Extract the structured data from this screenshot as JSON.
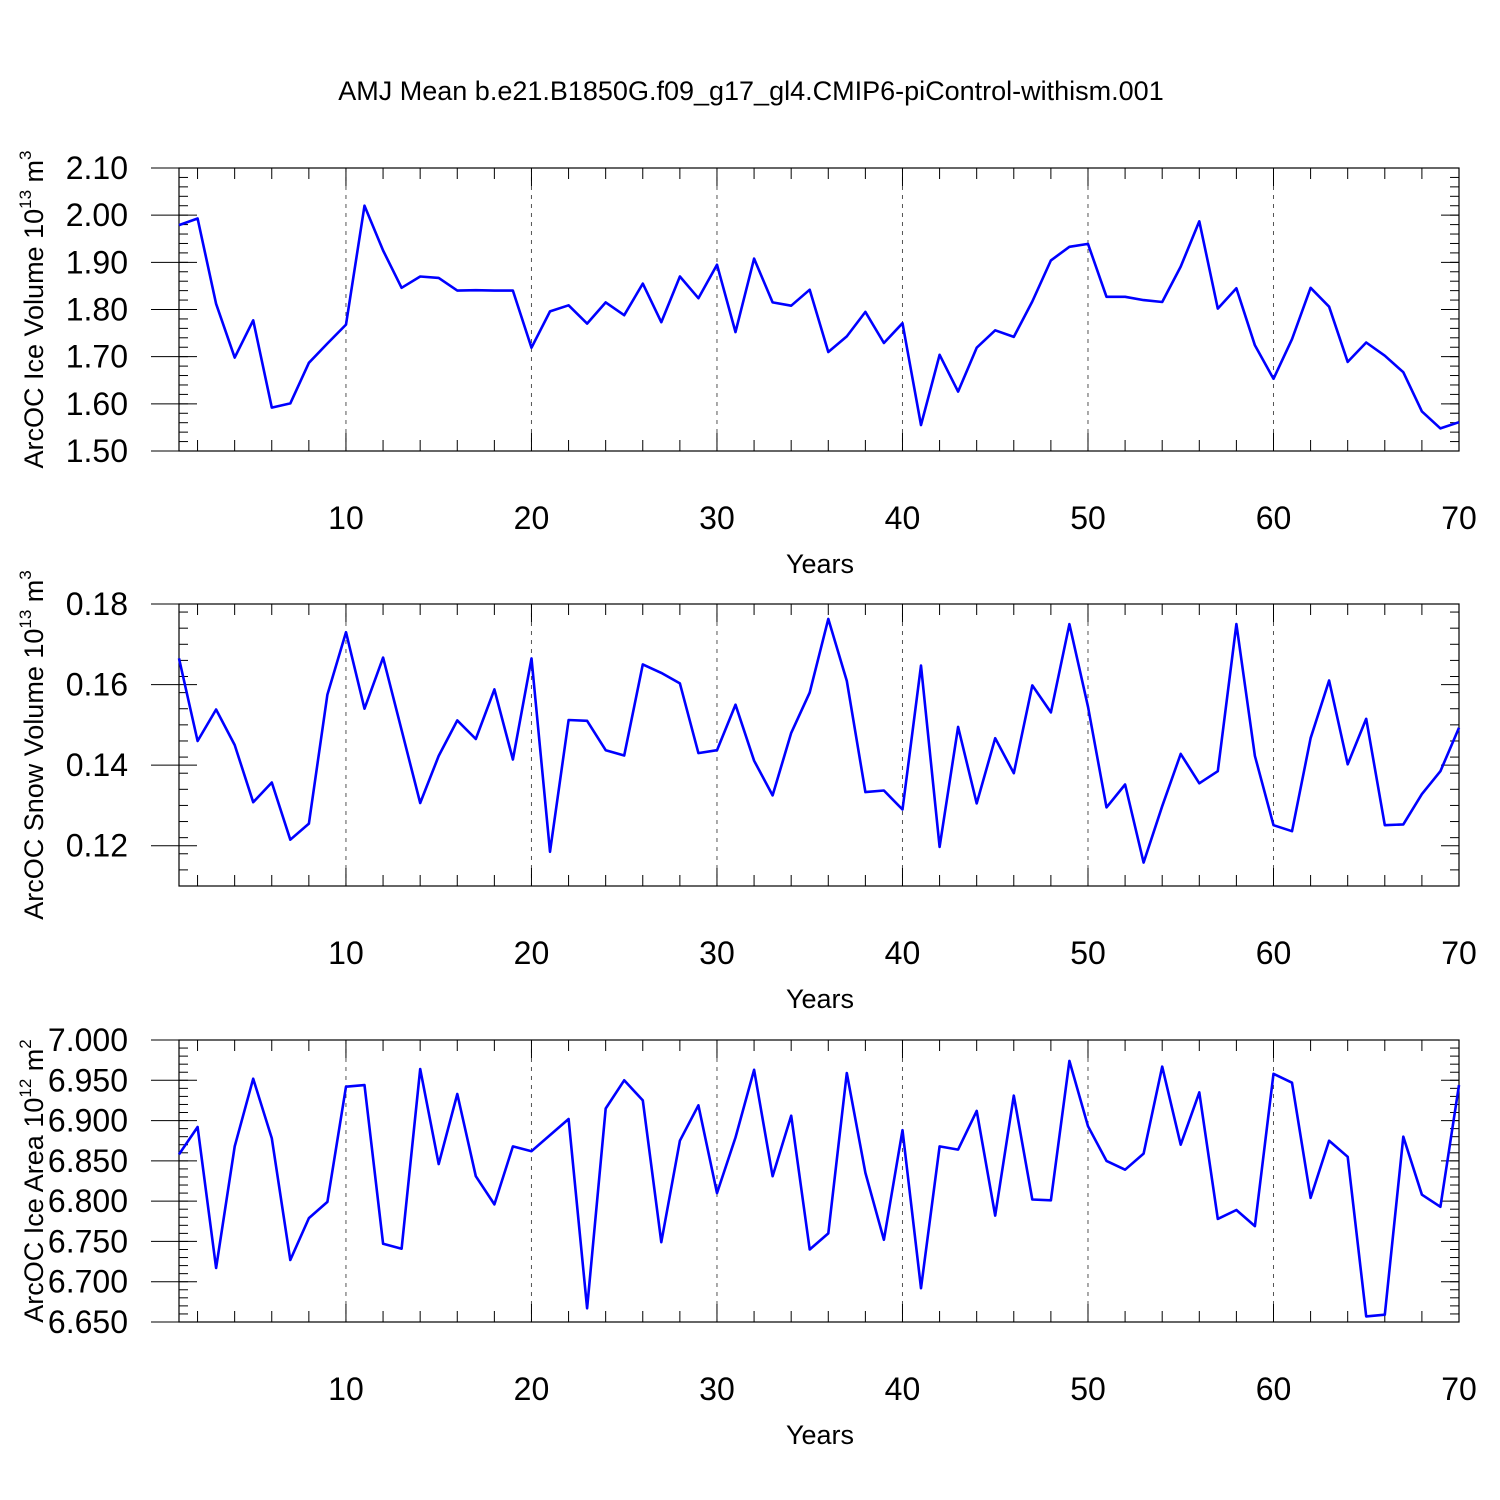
{
  "title": "AMJ Mean b.e21.B1850G.f09_g17_gl4.CMIP6-piControl-withism.001",
  "colors": {
    "series": "#0000ff",
    "axis": "#000000",
    "grid": "#555555"
  },
  "chart_data": [
    {
      "type": "line",
      "name": "ice-volume",
      "ylabel_main": "ArcOC Ice Volume 10",
      "ylabel_exp1": "13",
      "ylabel_unit": " m",
      "ylabel_exp2": "3",
      "xlabel": "Years",
      "xlim": [
        1,
        70
      ],
      "ylim": [
        1.5,
        2.1
      ],
      "yticks": [
        "1.50",
        "1.60",
        "1.70",
        "1.80",
        "1.90",
        "2.00",
        "2.10"
      ],
      "xticks": [
        "10",
        "20",
        "30",
        "40",
        "50",
        "60",
        "70"
      ],
      "grid_x": [
        10,
        20,
        30,
        40,
        50,
        60
      ],
      "y_minor_step": 0.02,
      "x": [
        1,
        2,
        3,
        4,
        5,
        6,
        7,
        8,
        9,
        10,
        11,
        12,
        13,
        14,
        15,
        16,
        17,
        18,
        19,
        20,
        21,
        22,
        23,
        24,
        25,
        26,
        27,
        28,
        29,
        30,
        31,
        32,
        33,
        34,
        35,
        36,
        37,
        38,
        39,
        40,
        41,
        42,
        43,
        44,
        45,
        46,
        47,
        48,
        49,
        50,
        51,
        52,
        53,
        54,
        55,
        56,
        57,
        58,
        59,
        60,
        61,
        62,
        63,
        64,
        65,
        66,
        67,
        68,
        69,
        70
      ],
      "values": [
        1.979,
        1.993,
        1.812,
        1.698,
        1.777,
        1.592,
        1.601,
        1.687,
        1.728,
        1.768,
        2.02,
        1.925,
        1.846,
        1.87,
        1.867,
        1.84,
        1.841,
        1.84,
        1.84,
        1.719,
        1.796,
        1.809,
        1.77,
        1.815,
        1.788,
        1.855,
        1.773,
        1.87,
        1.824,
        1.895,
        1.752,
        1.908,
        1.815,
        1.808,
        1.842,
        1.71,
        1.743,
        1.795,
        1.729,
        1.771,
        1.555,
        1.704,
        1.626,
        1.719,
        1.756,
        1.742,
        1.817,
        1.904,
        1.933,
        1.939,
        1.827,
        1.827,
        1.82,
        1.816,
        1.891,
        1.987,
        1.802,
        1.845,
        1.724,
        1.653,
        1.737,
        1.846,
        1.806,
        1.689,
        1.73,
        1.702,
        1.667,
        1.584,
        1.548,
        1.561
      ]
    },
    {
      "type": "line",
      "name": "snow-volume",
      "ylabel_main": "ArcOC Snow Volume 10",
      "ylabel_exp1": "13",
      "ylabel_unit": " m",
      "ylabel_exp2": "3",
      "xlabel": "Years",
      "xlim": [
        1,
        70
      ],
      "ylim": [
        0.11,
        0.18
      ],
      "yticks": [
        "0.12",
        "0.14",
        "0.16",
        "0.18"
      ],
      "ytick_values": [
        0.12,
        0.14,
        0.16,
        0.18
      ],
      "xticks": [
        "10",
        "20",
        "30",
        "40",
        "50",
        "60",
        "70"
      ],
      "grid_x": [
        10,
        20,
        30,
        40,
        50,
        60
      ],
      "y_minor_step": 0.004,
      "x": [
        1,
        2,
        3,
        4,
        5,
        6,
        7,
        8,
        9,
        10,
        11,
        12,
        13,
        14,
        15,
        16,
        17,
        18,
        19,
        20,
        21,
        22,
        23,
        24,
        25,
        26,
        27,
        28,
        29,
        30,
        31,
        32,
        33,
        34,
        35,
        36,
        37,
        38,
        39,
        40,
        41,
        42,
        43,
        44,
        45,
        46,
        47,
        48,
        49,
        50,
        51,
        52,
        53,
        54,
        55,
        56,
        57,
        58,
        59,
        60,
        61,
        62,
        63,
        64,
        65,
        66,
        67,
        68,
        69,
        70
      ],
      "values": [
        0.1665,
        0.146,
        0.1538,
        0.145,
        0.1308,
        0.1357,
        0.1215,
        0.1255,
        0.1575,
        0.173,
        0.154,
        0.1667,
        0.1487,
        0.1306,
        0.1423,
        0.1511,
        0.1465,
        0.1588,
        0.1414,
        0.1665,
        0.1185,
        0.1512,
        0.151,
        0.1437,
        0.1424,
        0.165,
        0.1629,
        0.1603,
        0.143,
        0.1437,
        0.155,
        0.1411,
        0.1325,
        0.148,
        0.158,
        0.1763,
        0.1609,
        0.1333,
        0.1337,
        0.129,
        0.1647,
        0.1197,
        0.1495,
        0.1305,
        0.1467,
        0.138,
        0.1598,
        0.1531,
        0.175,
        0.1545,
        0.1295,
        0.1352,
        0.1158,
        0.1298,
        0.1428,
        0.1355,
        0.1385,
        0.175,
        0.1423,
        0.1251,
        0.1236,
        0.1467,
        0.161,
        0.1402,
        0.1515,
        0.1251,
        0.1253,
        0.1328,
        0.1385,
        0.1493
      ]
    },
    {
      "type": "line",
      "name": "ice-area",
      "ylabel_main": "ArcOC Ice Area 10",
      "ylabel_exp1": "12",
      "ylabel_unit": " m",
      "ylabel_exp2": "2",
      "xlabel": "Years",
      "xlim": [
        1,
        70
      ],
      "ylim": [
        6.65,
        7.0
      ],
      "yticks": [
        "6.650",
        "6.700",
        "6.750",
        "6.800",
        "6.850",
        "6.900",
        "6.950",
        "7.000"
      ],
      "xticks": [
        "10",
        "20",
        "30",
        "40",
        "50",
        "60",
        "70"
      ],
      "grid_x": [
        10,
        20,
        30,
        40,
        50,
        60
      ],
      "y_minor_step": 0.01,
      "x": [
        1,
        2,
        3,
        4,
        5,
        6,
        7,
        8,
        9,
        10,
        11,
        12,
        13,
        14,
        15,
        16,
        17,
        18,
        19,
        20,
        21,
        22,
        23,
        24,
        25,
        26,
        27,
        28,
        29,
        30,
        31,
        32,
        33,
        34,
        35,
        36,
        37,
        38,
        39,
        40,
        41,
        42,
        43,
        44,
        45,
        46,
        47,
        48,
        49,
        50,
        51,
        52,
        53,
        54,
        55,
        56,
        57,
        58,
        59,
        60,
        61,
        62,
        63,
        64,
        65,
        66,
        67,
        68,
        69,
        70
      ],
      "values": [
        6.858,
        6.892,
        6.717,
        6.868,
        6.952,
        6.878,
        6.727,
        6.779,
        6.799,
        6.942,
        6.944,
        6.747,
        6.741,
        6.964,
        6.846,
        6.933,
        6.831,
        6.796,
        6.868,
        6.862,
        6.882,
        6.902,
        6.667,
        6.915,
        6.95,
        6.925,
        6.749,
        6.875,
        6.919,
        6.81,
        6.879,
        6.963,
        6.831,
        6.906,
        6.74,
        6.76,
        6.959,
        6.835,
        6.752,
        6.888,
        6.692,
        6.868,
        6.864,
        6.912,
        6.782,
        6.931,
        6.802,
        6.801,
        6.974,
        6.893,
        6.85,
        6.839,
        6.859,
        6.967,
        6.87,
        6.935,
        6.778,
        6.789,
        6.769,
        6.958,
        6.947,
        6.804,
        6.875,
        6.855,
        6.657,
        6.659,
        6.88,
        6.808,
        6.793,
        6.944
      ]
    }
  ]
}
